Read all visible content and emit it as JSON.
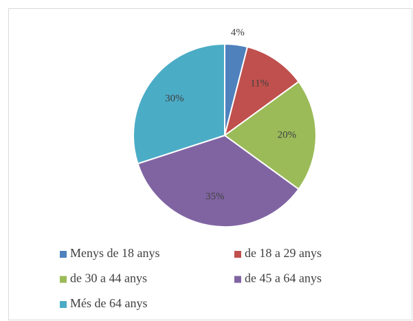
{
  "chart_data": {
    "type": "pie",
    "categories": [
      "Menys de 18 anys",
      "de 18 a 29 anys",
      "de 30 a 44 anys",
      "de 45 a 64 anys",
      "Més de 64 anys"
    ],
    "values": [
      4,
      11,
      20,
      35,
      30
    ],
    "value_labels": [
      "4%",
      "11%",
      "20%",
      "35%",
      "30%"
    ],
    "colors": [
      "#4f81bd",
      "#c0504d",
      "#9bbb59",
      "#8064a2",
      "#4bacc6"
    ]
  }
}
